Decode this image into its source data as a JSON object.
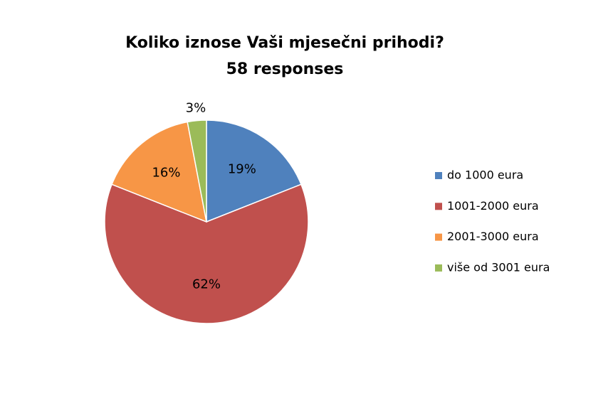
{
  "chart_data": {
    "type": "pie",
    "title": "Koliko iznose Vaši mjesečni prihodi?",
    "subtitle": "58 responses",
    "categories": [
      "do 1000 eura",
      "1001-2000 eura",
      "2001-3000 eura",
      "više od 3001 eura"
    ],
    "values": [
      19,
      62,
      16,
      3
    ],
    "value_labels": [
      "19%",
      "62%",
      "16%",
      "3%"
    ],
    "colors": [
      "#4f81bd",
      "#c0504d",
      "#f79646",
      "#9bbb59"
    ],
    "legend": "right"
  }
}
